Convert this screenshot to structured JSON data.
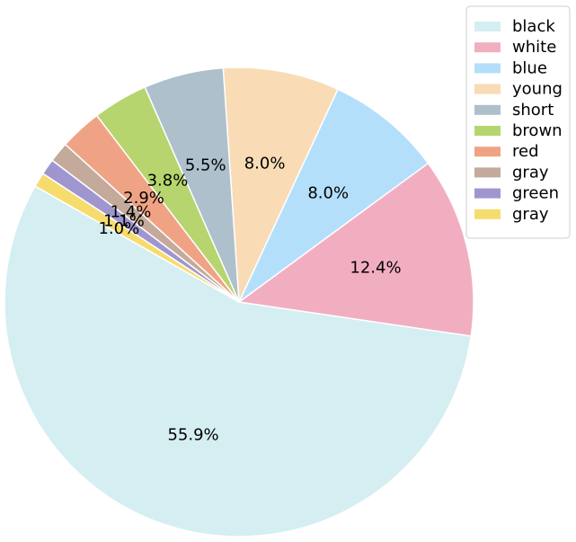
{
  "chart_data": {
    "type": "pie",
    "title": "",
    "legend_placement": "top-right",
    "slices": [
      {
        "label": "black",
        "value": 55.9,
        "pct_label": "55.9%",
        "color": "#d5eef2"
      },
      {
        "label": "white",
        "value": 12.4,
        "pct_label": "12.4%",
        "color": "#f2aec1"
      },
      {
        "label": "blue",
        "value": 8.0,
        "pct_label": "8.0%",
        "color": "#b3dffb"
      },
      {
        "label": "young",
        "value": 8.0,
        "pct_label": "8.0%",
        "color": "#f9dbb5"
      },
      {
        "label": "short",
        "value": 5.5,
        "pct_label": "5.5%",
        "color": "#adc0cc"
      },
      {
        "label": "brown",
        "value": 3.8,
        "pct_label": "3.8%",
        "color": "#b6d56e"
      },
      {
        "label": "red",
        "value": 2.9,
        "pct_label": "2.9%",
        "color": "#f0a384"
      },
      {
        "label": "gray",
        "value": 1.4,
        "pct_label": "1.4%",
        "color": "#c4aa9b"
      },
      {
        "label": "green",
        "value": 1.1,
        "pct_label": "1.1%",
        "color": "#9f96d0"
      },
      {
        "label": "gray",
        "value": 1.0,
        "pct_label": "1.0%",
        "color": "#f6dc6d"
      }
    ]
  }
}
